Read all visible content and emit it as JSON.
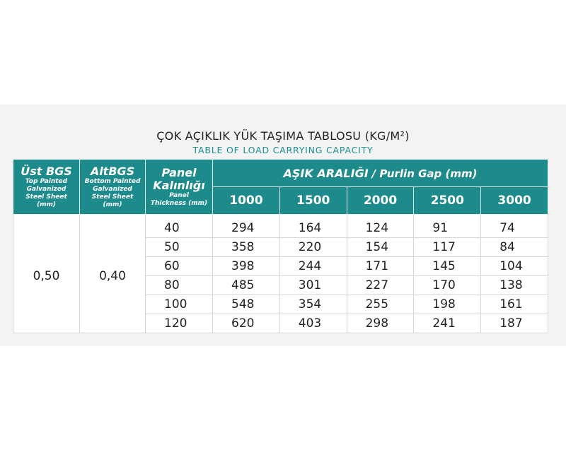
{
  "header": {
    "title": "ÇOK AÇIKLIK YÜK TAŞIMA TABLOSU (KG/M²)",
    "subtitle": "TABLE OF LOAD CARRYING CAPACITY"
  },
  "table": {
    "columns": [
      {
        "title": [
          "Üst BGS"
        ],
        "sub": [
          "Top Painted",
          "Galvanized",
          "Steel Sheet",
          "(mm)"
        ]
      },
      {
        "title": [
          "AltBGS"
        ],
        "sub": [
          "Bottom Painted",
          "Galvanized",
          "Steel Sheet",
          "(mm)"
        ]
      },
      {
        "title": [
          "Panel",
          "Kalınlığı"
        ],
        "sub": [
          "Panel",
          "Thickness (mm)"
        ]
      }
    ],
    "gap_title": "AŞIK ARALIĞI",
    "gap_subtitle": "/ Purlin Gap (mm)",
    "gaps": [
      1000,
      1500,
      2000,
      2500,
      3000
    ],
    "top_sheet": "0,50",
    "bottom_sheet": "0,40",
    "rows": [
      {
        "thickness": 40,
        "loads": [
          294,
          164,
          124,
          91,
          74
        ]
      },
      {
        "thickness": 50,
        "loads": [
          358,
          220,
          154,
          117,
          84
        ]
      },
      {
        "thickness": 60,
        "loads": [
          398,
          244,
          171,
          145,
          104
        ]
      },
      {
        "thickness": 80,
        "loads": [
          485,
          301,
          227,
          170,
          138
        ]
      },
      {
        "thickness": 100,
        "loads": [
          548,
          354,
          255,
          198,
          161
        ]
      },
      {
        "thickness": 120,
        "loads": [
          620,
          403,
          298,
          241,
          187
        ]
      }
    ]
  }
}
